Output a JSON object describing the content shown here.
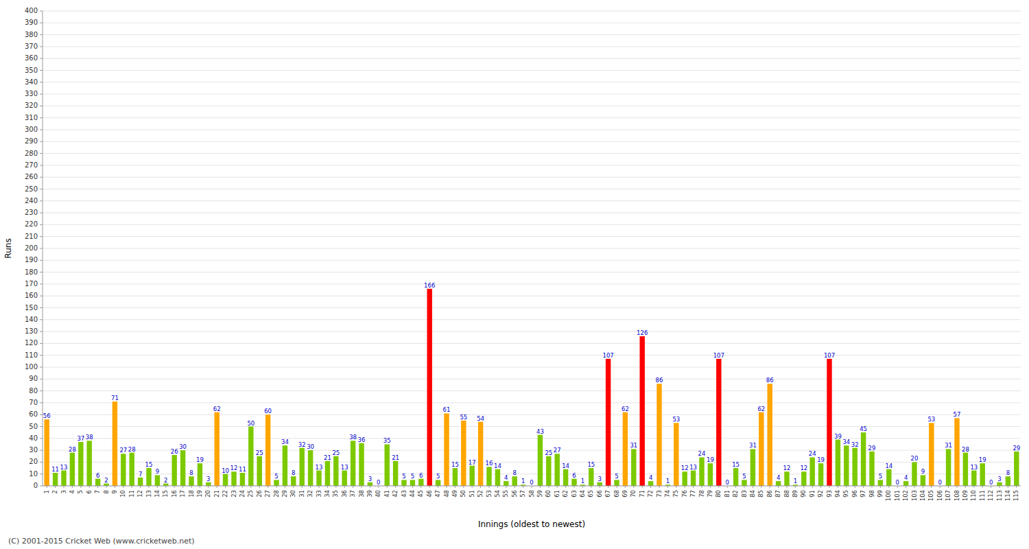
{
  "chart_data": {
    "type": "bar",
    "xlabel": "Innings (oldest to newest)",
    "ylabel": "Runs",
    "footer": "(C) 2001-2015 Cricket Web (www.cricketweb.net)",
    "categories": [
      "1",
      "2",
      "3",
      "4",
      "5",
      "6",
      "7",
      "8",
      "9",
      "10",
      "11",
      "12",
      "13",
      "14",
      "15",
      "16",
      "17",
      "18",
      "19",
      "20",
      "21",
      "22",
      "23",
      "24",
      "25",
      "26",
      "27",
      "28",
      "29",
      "30",
      "31",
      "32",
      "33",
      "34",
      "35",
      "36",
      "37",
      "38",
      "39",
      "40",
      "41",
      "42",
      "43",
      "44",
      "45",
      "46",
      "47",
      "48",
      "49",
      "50",
      "51",
      "52",
      "53",
      "54",
      "55",
      "56",
      "57",
      "58",
      "59",
      "60",
      "61",
      "62",
      "63",
      "64",
      "65",
      "66",
      "67",
      "68",
      "69",
      "70",
      "71",
      "72",
      "73",
      "74",
      "75",
      "76",
      "77",
      "78",
      "79",
      "80",
      "81",
      "82",
      "83",
      "84",
      "85",
      "86",
      "87",
      "88",
      "89",
      "90",
      "91",
      "92",
      "93",
      "94",
      "95",
      "96",
      "97",
      "98",
      "99",
      "100",
      "101",
      "102",
      "103",
      "104",
      "105",
      "106",
      "107",
      "108",
      "109",
      "110",
      "111",
      "112",
      "113",
      "114",
      "115"
    ],
    "values": [
      56,
      11,
      13,
      28,
      37,
      38,
      6,
      2,
      71,
      27,
      28,
      7,
      15,
      9,
      2,
      26,
      30,
      8,
      19,
      3,
      62,
      10,
      12,
      11,
      50,
      25,
      60,
      5,
      34,
      8,
      32,
      30,
      13,
      21,
      25,
      13,
      38,
      36,
      3,
      0,
      35,
      21,
      5,
      5,
      6,
      166,
      5,
      61,
      15,
      55,
      17,
      54,
      16,
      14,
      4,
      8,
      1,
      0,
      43,
      25,
      27,
      14,
      6,
      1,
      15,
      3,
      107,
      5,
      62,
      31,
      126,
      4,
      86,
      1,
      53,
      12,
      13,
      24,
      19,
      107,
      0,
      15,
      5,
      31,
      62,
      86,
      4,
      12,
      1,
      12,
      24,
      19,
      107,
      39,
      34,
      32,
      45,
      29,
      5,
      14,
      0,
      4,
      20,
      9,
      53,
      0,
      31,
      57,
      28,
      13,
      19,
      0,
      3,
      8,
      29
    ],
    "colors": [
      "#FFA500",
      "#7DC900",
      "#7DC900",
      "#7DC900",
      "#7DC900",
      "#7DC900",
      "#7DC900",
      "#7DC900",
      "#FFA500",
      "#7DC900",
      "#7DC900",
      "#7DC900",
      "#7DC900",
      "#7DC900",
      "#7DC900",
      "#7DC900",
      "#7DC900",
      "#7DC900",
      "#7DC900",
      "#7DC900",
      "#FFA500",
      "#7DC900",
      "#7DC900",
      "#7DC900",
      "#7DC900",
      "#7DC900",
      "#FFA500",
      "#7DC900",
      "#7DC900",
      "#7DC900",
      "#7DC900",
      "#7DC900",
      "#7DC900",
      "#7DC900",
      "#7DC900",
      "#7DC900",
      "#7DC900",
      "#7DC900",
      "#7DC900",
      "#7DC900",
      "#7DC900",
      "#7DC900",
      "#7DC900",
      "#7DC900",
      "#7DC900",
      "#FF0000",
      "#7DC900",
      "#FFA500",
      "#7DC900",
      "#FFA500",
      "#7DC900",
      "#FFA500",
      "#7DC900",
      "#7DC900",
      "#7DC900",
      "#7DC900",
      "#7DC900",
      "#7DC900",
      "#7DC900",
      "#7DC900",
      "#7DC900",
      "#7DC900",
      "#7DC900",
      "#7DC900",
      "#7DC900",
      "#7DC900",
      "#FF0000",
      "#7DC900",
      "#FFA500",
      "#7DC900",
      "#FF0000",
      "#7DC900",
      "#FFA500",
      "#7DC900",
      "#FFA500",
      "#7DC900",
      "#7DC900",
      "#7DC900",
      "#7DC900",
      "#FF0000",
      "#7DC900",
      "#7DC900",
      "#7DC900",
      "#7DC900",
      "#FFA500",
      "#FFA500",
      "#7DC900",
      "#7DC900",
      "#7DC900",
      "#7DC900",
      "#7DC900",
      "#7DC900",
      "#FF0000",
      "#7DC900",
      "#7DC900",
      "#7DC900",
      "#7DC900",
      "#7DC900",
      "#7DC900",
      "#7DC900",
      "#7DC900",
      "#7DC900",
      "#7DC900",
      "#7DC900",
      "#FFA500",
      "#7DC900",
      "#7DC900",
      "#FFA500",
      "#7DC900",
      "#7DC900",
      "#7DC900",
      "#7DC900",
      "#7DC900",
      "#7DC900",
      "#7DC900"
    ],
    "ylim": [
      0,
      400
    ],
    "yticks": [
      0,
      10,
      20,
      30,
      40,
      50,
      60,
      70,
      80,
      90,
      100,
      110,
      120,
      130,
      140,
      150,
      160,
      170,
      180,
      190,
      200,
      210,
      220,
      230,
      240,
      250,
      260,
      270,
      280,
      290,
      300,
      310,
      320,
      330,
      340,
      350,
      360,
      370,
      380,
      390,
      400
    ],
    "grid": true,
    "data_labels": true
  }
}
